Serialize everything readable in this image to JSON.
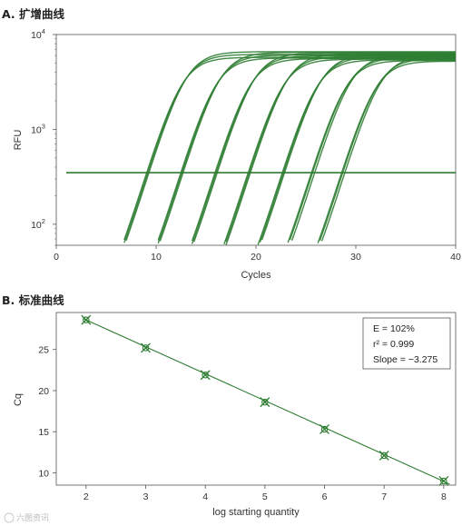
{
  "watermark": "六图资讯",
  "chart_data": [
    {
      "type": "line",
      "title": "A. 扩增曲线",
      "xlabel": "Cycles",
      "ylabel": "RFU",
      "xlim": [
        0,
        40
      ],
      "ylim": [
        60,
        10000
      ],
      "yscale": "log",
      "x_ticks": [
        "0",
        "10",
        "20",
        "30",
        "40"
      ],
      "y_ticks": [
        {
          "value": 100,
          "base": "10",
          "exp": "2"
        },
        {
          "value": 1000,
          "base": "10",
          "exp": "3"
        },
        {
          "value": 10000,
          "base": "10",
          "exp": "4"
        }
      ],
      "grid": false,
      "threshold": 350,
      "line_color": "#2e7d32",
      "series": [
        {
          "cq": [
            8.8,
            9.0,
            9.2
          ]
        },
        {
          "cq": [
            12.2,
            12.4,
            12.6
          ]
        },
        {
          "cq": [
            15.6,
            15.8,
            16.0
          ]
        },
        {
          "cq": [
            18.9,
            19.1,
            19.3
          ]
        },
        {
          "cq": [
            22.3,
            22.5,
            22.7
          ]
        },
        {
          "cq": [
            25.2,
            25.4,
            25.7
          ]
        },
        {
          "cq": [
            28.2,
            28.4,
            28.7
          ]
        }
      ]
    },
    {
      "type": "scatter",
      "title": "B. 标准曲线",
      "xlabel": "log starting quantity",
      "ylabel": "Cq",
      "xlim": [
        1.5,
        8.2
      ],
      "ylim": [
        8.5,
        29.5
      ],
      "x_ticks": [
        "2",
        "3",
        "4",
        "5",
        "6",
        "7",
        "8"
      ],
      "y_ticks": [
        "10",
        "15",
        "20",
        "25"
      ],
      "grid": false,
      "points": [
        {
          "x": 2,
          "y": 28.6
        },
        {
          "x": 3,
          "y": 25.2
        },
        {
          "x": 4,
          "y": 21.9
        },
        {
          "x": 5,
          "y": 18.6
        },
        {
          "x": 6,
          "y": 15.3
        },
        {
          "x": 7,
          "y": 12.1
        },
        {
          "x": 8,
          "y": 9.0
        }
      ],
      "fit": {
        "slope": -3.275,
        "intercept": 35.15
      },
      "stats": [
        "E = 102%",
        "r² = 0.999",
        "Slope = −3.275"
      ],
      "line_color": "#2e7d32"
    }
  ]
}
